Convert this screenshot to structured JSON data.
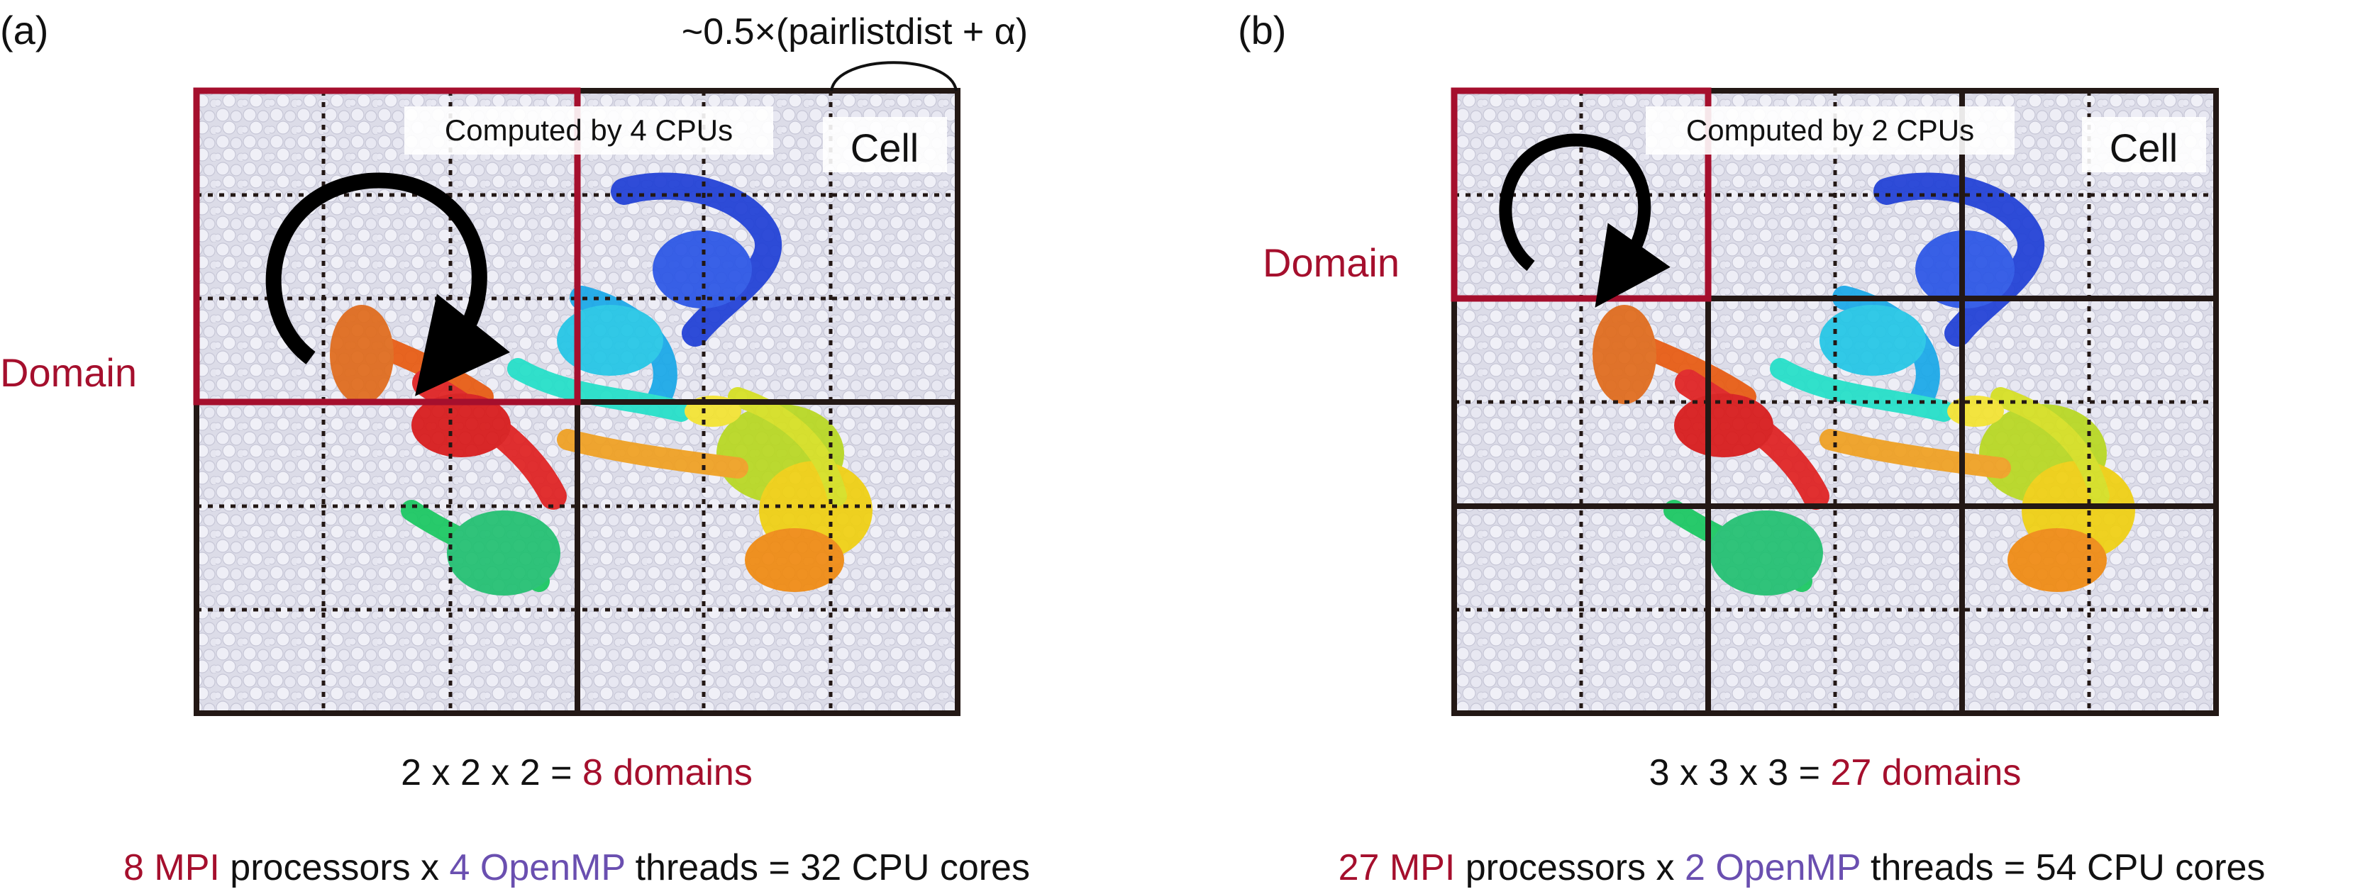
{
  "panels": [
    {
      "id": "a",
      "panel_label": "(a)",
      "scale_annotation": "~0.5×(pairlistdist + α)",
      "computed_label": "Computed by 4 CPUs",
      "cell_label": "Cell",
      "domain_label": "Domain",
      "grid_cells": [
        6,
        6
      ],
      "domain_divisions": [
        2,
        2
      ],
      "domain_formula": {
        "prefix": "2 x 2 x 2 = ",
        "highlight": "8 domains"
      },
      "cores_line": [
        {
          "text": "8 MPI",
          "color": "#a50f2d"
        },
        {
          "text": " processors x ",
          "color": "#111111"
        },
        {
          "text": "4 OpenMP",
          "color": "#6a4fb0"
        },
        {
          "text": " threads = 32 CPU cores",
          "color": "#111111"
        }
      ]
    },
    {
      "id": "b",
      "panel_label": "(b)",
      "scale_annotation": "",
      "computed_label": "Computed by 2 CPUs",
      "cell_label": "Cell",
      "domain_label": "Domain",
      "grid_cells": [
        6,
        6
      ],
      "domain_divisions": [
        3,
        3
      ],
      "domain_formula": {
        "prefix": "3 x 3 x 3 = ",
        "highlight": "27 domains"
      },
      "cores_line": [
        {
          "text": "27 MPI",
          "color": "#a50f2d"
        },
        {
          "text": " processors x ",
          "color": "#111111"
        },
        {
          "text": "2 OpenMP",
          "color": "#6a4fb0"
        },
        {
          "text": " threads = 54 CPU cores",
          "color": "#111111"
        }
      ]
    }
  ],
  "colors": {
    "domain": "#a50f2d",
    "openmp": "#6a4fb0",
    "grid_line": "#231815",
    "water_background": "#dcdce8",
    "text": "#111111"
  }
}
